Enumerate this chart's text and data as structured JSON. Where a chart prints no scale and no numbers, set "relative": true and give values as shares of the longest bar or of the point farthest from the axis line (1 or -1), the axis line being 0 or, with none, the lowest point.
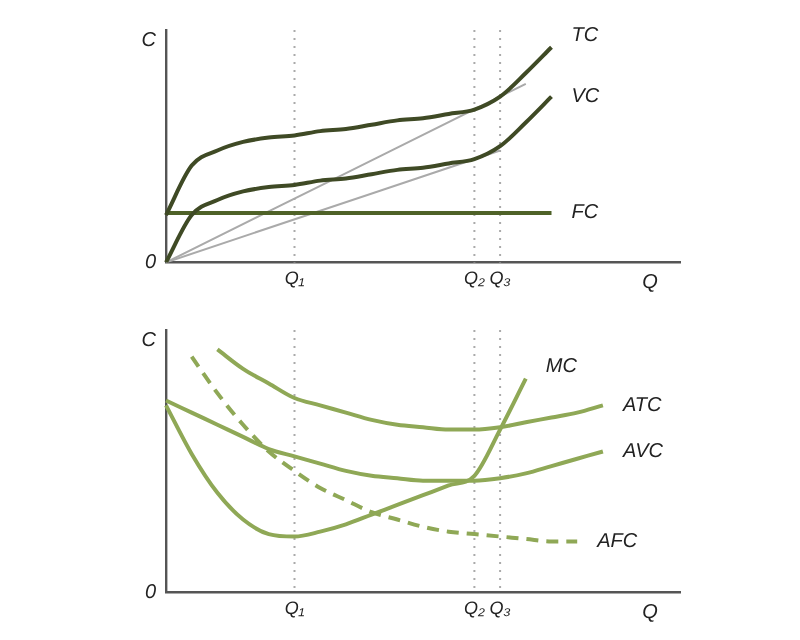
{
  "chart_data": [
    {
      "type": "line",
      "relative": true,
      "ylabel": "C",
      "xlabel": "Q",
      "categories": [
        null,
        null,
        null,
        null,
        null,
        "Q₁",
        null,
        null,
        null,
        null,
        null,
        null,
        "Q₂",
        "Q₃",
        null,
        null,
        null,
        null,
        null,
        null,
        null
      ],
      "grid": false,
      "legend": false,
      "marker": "none",
      "annotations": [
        "0"
      ],
      "ref_lines": [
        {
          "axis": "x",
          "value": "Q₁",
          "color": "#aaaaaa",
          "line_style": "dotted"
        },
        {
          "axis": "x",
          "value": "Q₂",
          "color": "#aaaaaa",
          "line_style": "dotted"
        },
        {
          "axis": "x",
          "value": "Q₃",
          "color": "#aaaaaa",
          "line_style": "dotted"
        }
      ],
      "series": [
        {
          "name": "TC",
          "color": "#3f4a25",
          "values": [
            0.22,
            0.45,
            0.52,
            0.56,
            0.58,
            0.59,
            0.61,
            0.62,
            0.64,
            0.66,
            0.67,
            0.69,
            0.71,
            0.77,
            0.88,
            1,
            null,
            null,
            null,
            null,
            null
          ]
        },
        {
          "name": "VC",
          "color": "#3f4a25",
          "values": [
            0,
            0.22,
            0.29,
            0.33,
            0.35,
            0.36,
            0.38,
            0.39,
            0.41,
            0.43,
            0.44,
            0.46,
            0.48,
            0.54,
            0.65,
            0.77,
            null,
            null,
            null,
            null,
            null
          ]
        },
        {
          "name": "FC",
          "color": "#4f6228",
          "values": [
            0.23,
            0.23,
            0.23,
            0.23,
            0.23,
            0.23,
            0.23,
            0.23,
            0.23,
            0.23,
            0.23,
            0.23,
            0.23,
            0.23,
            0.23,
            0.23,
            null,
            null,
            null,
            null,
            null
          ]
        },
        {
          "color": "#aaaaaa",
          "values": [
            0,
            null,
            null,
            null,
            null,
            null,
            null,
            null,
            null,
            null,
            null,
            null,
            null,
            null,
            0.83,
            null,
            null,
            null,
            null,
            null,
            null
          ]
        },
        {
          "color": "#aaaaaa",
          "values": [
            0,
            null,
            null,
            null,
            null,
            null,
            null,
            null,
            null,
            null,
            null,
            null,
            null,
            0.52,
            null,
            null,
            null,
            null,
            null,
            null,
            null
          ]
        }
      ]
    },
    {
      "type": "line",
      "relative": true,
      "ylabel": "C",
      "xlabel": "Q",
      "categories": [
        null,
        null,
        null,
        null,
        null,
        "Q₁",
        null,
        null,
        null,
        null,
        null,
        null,
        "Q₂",
        "Q₃",
        null,
        null,
        null,
        null,
        null,
        null,
        null
      ],
      "grid": false,
      "legend": false,
      "marker": "none",
      "annotations": [
        "0"
      ],
      "ref_lines": [
        {
          "axis": "x",
          "value": "Q₁",
          "color": "#aaaaaa",
          "line_style": "dotted"
        },
        {
          "axis": "x",
          "value": "Q₂",
          "color": "#aaaaaa",
          "line_style": "dotted"
        },
        {
          "axis": "x",
          "value": "Q₃",
          "color": "#aaaaaa",
          "line_style": "dotted"
        }
      ],
      "series": [
        {
          "name": "MC",
          "color": "#8fa856",
          "values": [
            0.77,
            0.57,
            0.41,
            0.3,
            0.24,
            0.23,
            0.25,
            0.28,
            0.32,
            0.36,
            0.4,
            0.44,
            0.48,
            0.67,
            0.88,
            null,
            null,
            null,
            null,
            null,
            null
          ]
        },
        {
          "name": "ATC",
          "color": "#8fa856",
          "values": [
            null,
            null,
            1,
            0.92,
            0.86,
            0.8,
            0.77,
            0.74,
            0.71,
            0.69,
            0.68,
            0.67,
            0.67,
            0.68,
            0.7,
            0.72,
            0.74,
            0.77,
            null,
            null,
            null
          ]
        },
        {
          "name": "AVC",
          "color": "#8fa856",
          "values": [
            0.79,
            0.74,
            0.69,
            0.64,
            0.59,
            0.56,
            0.53,
            0.5,
            0.48,
            0.47,
            0.46,
            0.46,
            0.46,
            0.47,
            0.49,
            0.52,
            0.55,
            0.58,
            null,
            null,
            null
          ]
        },
        {
          "name": "AFC",
          "color": "#8fa856",
          "line_style": "dashed",
          "values": [
            null,
            0.97,
            0.82,
            0.69,
            0.58,
            0.5,
            0.43,
            0.38,
            0.33,
            0.3,
            0.27,
            0.25,
            0.24,
            0.23,
            0.22,
            0.21,
            0.21,
            null,
            null,
            null,
            null
          ]
        }
      ]
    }
  ]
}
